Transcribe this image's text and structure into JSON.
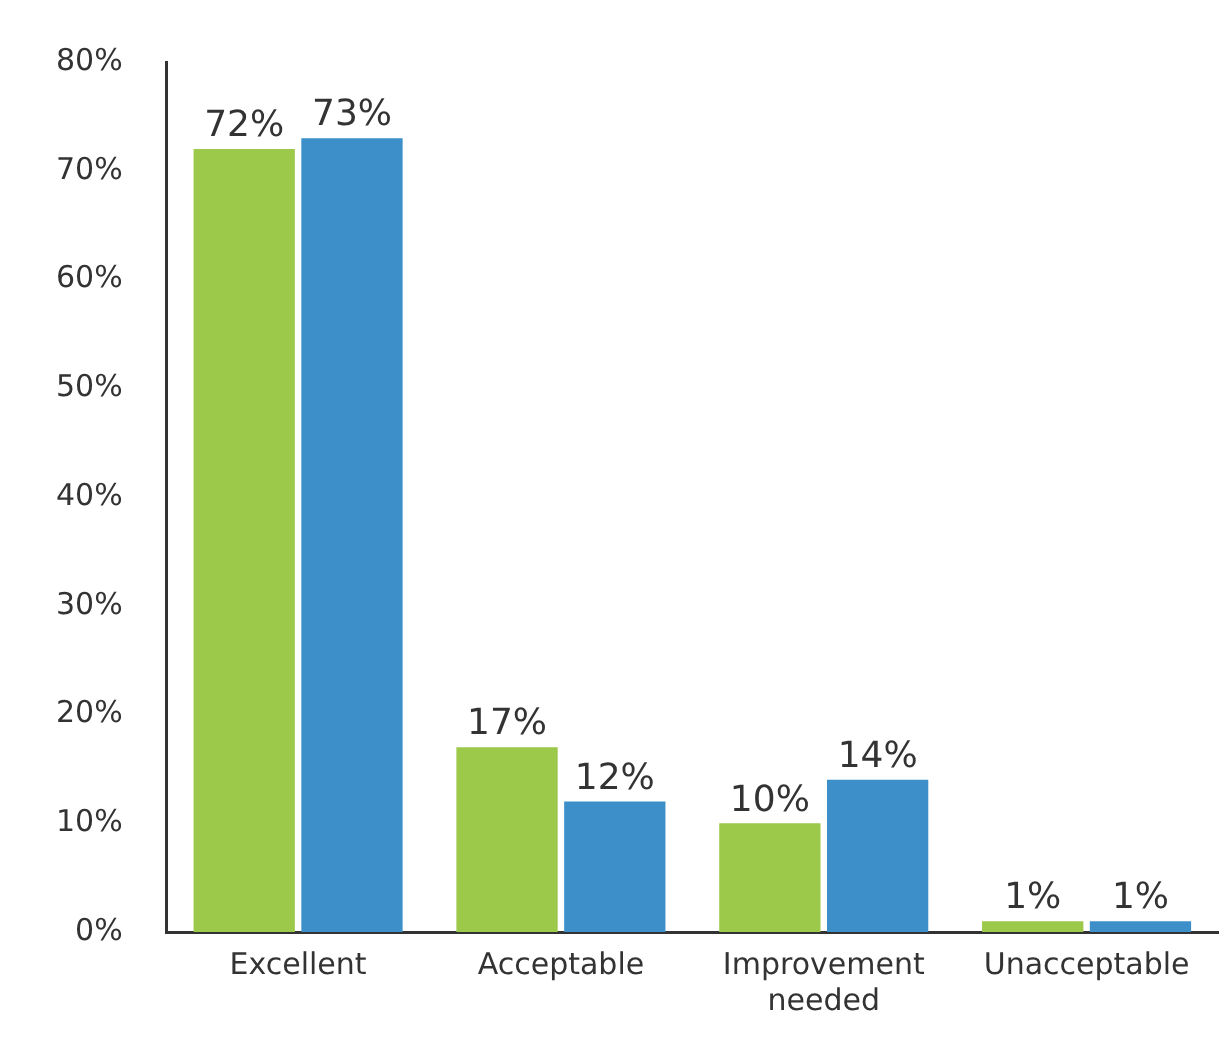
{
  "chart_data": {
    "type": "bar",
    "categories": [
      "Excellent",
      "Acceptable",
      "Improvement needed",
      "Unacceptable"
    ],
    "series": [
      {
        "color": "#9cc94a",
        "values": [
          72,
          17,
          10,
          1
        ],
        "value_labels": [
          "72%",
          "17%",
          "10%",
          "1%"
        ]
      },
      {
        "color": "#3d8fca",
        "values": [
          73,
          12,
          14,
          1
        ],
        "value_labels": [
          "73%",
          "12%",
          "14%",
          "1%"
        ]
      }
    ],
    "ylim": [
      0,
      80
    ],
    "yticks": [
      {
        "value": 0,
        "label": "0%"
      },
      {
        "value": 10,
        "label": "10%"
      },
      {
        "value": 20,
        "label": "20%"
      },
      {
        "value": 30,
        "label": "30%"
      },
      {
        "value": 40,
        "label": "40%"
      },
      {
        "value": 50,
        "label": "50%"
      },
      {
        "value": 60,
        "label": "60%"
      },
      {
        "value": 70,
        "label": "70%"
      },
      {
        "value": 80,
        "label": "80%"
      }
    ],
    "grid": false,
    "legend": false
  }
}
